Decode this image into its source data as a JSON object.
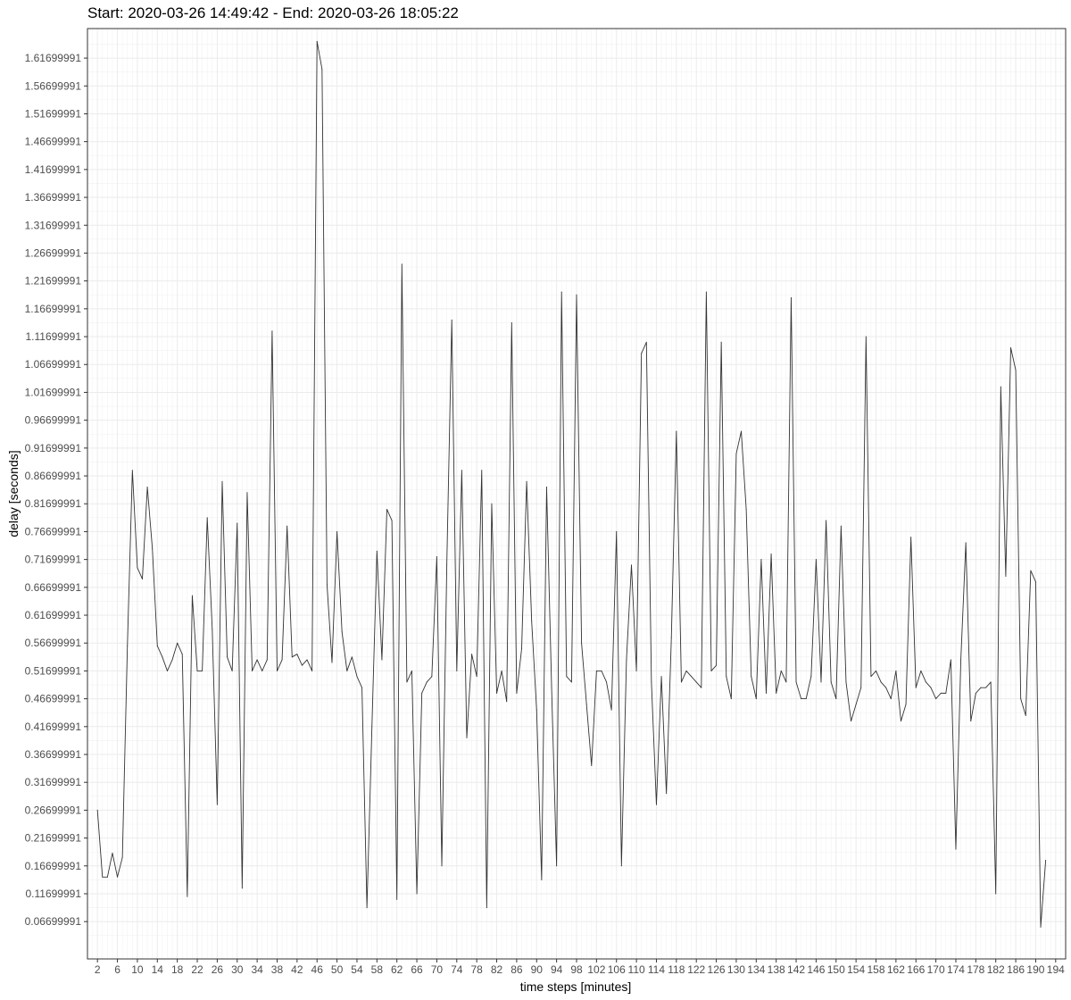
{
  "chart_data": {
    "type": "line",
    "title": "Start: 2020-03-26 14:49:42 - End: 2020-03-26 18:05:22",
    "xlabel": "time steps [minutes]",
    "ylabel": "delay [seconds]",
    "xlim": [
      0,
      196
    ],
    "ylim": [
      0.0,
      1.67
    ],
    "x_ticks": [
      2,
      6,
      10,
      14,
      18,
      22,
      26,
      30,
      34,
      38,
      42,
      46,
      50,
      54,
      58,
      62,
      66,
      70,
      74,
      78,
      82,
      86,
      90,
      94,
      98,
      102,
      106,
      110,
      114,
      118,
      122,
      126,
      130,
      134,
      138,
      142,
      146,
      150,
      154,
      158,
      162,
      166,
      170,
      174,
      178,
      182,
      186,
      190,
      194
    ],
    "y_ticks": [
      "0.06699991",
      "0.11699991",
      "0.16699991",
      "0.21699991",
      "0.26699991",
      "0.31699991",
      "0.36699991",
      "0.41699991",
      "0.46699991",
      "0.51699991",
      "0.56699991",
      "0.61699991",
      "0.66699991",
      "0.71699991",
      "0.76699991",
      "0.81699991",
      "0.86699991",
      "0.91699991",
      "0.96699991",
      "1.01699991",
      "1.06699991",
      "1.11699991",
      "1.16699991",
      "1.21699991",
      "1.26699991",
      "1.31699991",
      "1.36699991",
      "1.41699991",
      "1.46699991",
      "1.51699991",
      "1.56699991",
      "1.61699991"
    ],
    "grid": true,
    "line_color": "#333333",
    "series": [
      {
        "x_start": 2,
        "x_step": 1,
        "values": [
          0.267,
          0.147,
          0.147,
          0.19,
          0.147,
          0.182,
          0.562,
          0.877,
          0.702,
          0.682,
          0.847,
          0.737,
          0.562,
          0.542,
          0.517,
          0.537,
          0.567,
          0.547,
          0.112,
          0.652,
          0.517,
          0.517,
          0.792,
          0.592,
          0.277,
          0.857,
          0.542,
          0.517,
          0.782,
          0.127,
          0.837,
          0.517,
          0.537,
          0.517,
          0.537,
          1.127,
          0.517,
          0.537,
          0.777,
          0.542,
          0.547,
          0.527,
          0.537,
          0.517,
          1.647,
          1.597,
          0.672,
          0.532,
          0.767,
          0.587,
          0.517,
          0.542,
          0.507,
          0.487,
          0.092,
          0.417,
          0.732,
          0.537,
          0.807,
          0.787,
          0.107,
          1.247,
          0.497,
          0.517,
          0.117,
          0.477,
          0.497,
          0.507,
          0.722,
          0.167,
          0.707,
          1.147,
          0.517,
          0.877,
          0.397,
          0.547,
          0.507,
          0.877,
          0.092,
          0.817,
          0.477,
          0.517,
          0.462,
          1.142,
          0.477,
          0.557,
          0.857,
          0.607,
          0.447,
          0.142,
          0.847,
          0.487,
          0.167,
          1.197,
          0.507,
          0.497,
          1.192,
          0.567,
          0.457,
          0.347,
          0.517,
          0.517,
          0.497,
          0.447,
          0.767,
          0.167,
          0.537,
          0.707,
          0.517,
          1.087,
          1.107,
          0.497,
          0.277,
          0.507,
          0.297,
          0.577,
          0.947,
          0.497,
          0.517,
          0.507,
          0.497,
          0.487,
          1.197,
          0.517,
          0.527,
          1.107,
          0.507,
          0.467,
          0.907,
          0.947,
          0.807,
          0.507,
          0.467,
          0.717,
          0.477,
          0.727,
          0.477,
          0.517,
          0.497,
          1.187,
          0.497,
          0.467,
          0.467,
          0.507,
          0.717,
          0.497,
          0.787,
          0.497,
          0.467,
          0.777,
          0.497,
          0.427,
          0.457,
          0.487,
          1.117,
          0.507,
          0.517,
          0.497,
          0.487,
          0.467,
          0.517,
          0.427,
          0.457,
          0.757,
          0.487,
          0.517,
          0.497,
          0.487,
          0.467,
          0.477,
          0.477,
          0.537,
          0.197,
          0.537,
          0.747,
          0.427,
          0.477,
          0.487,
          0.487,
          0.497,
          0.117,
          1.027,
          0.687,
          1.097,
          1.057,
          0.467,
          0.437,
          0.697,
          0.677,
          0.057,
          0.177
        ]
      }
    ]
  }
}
